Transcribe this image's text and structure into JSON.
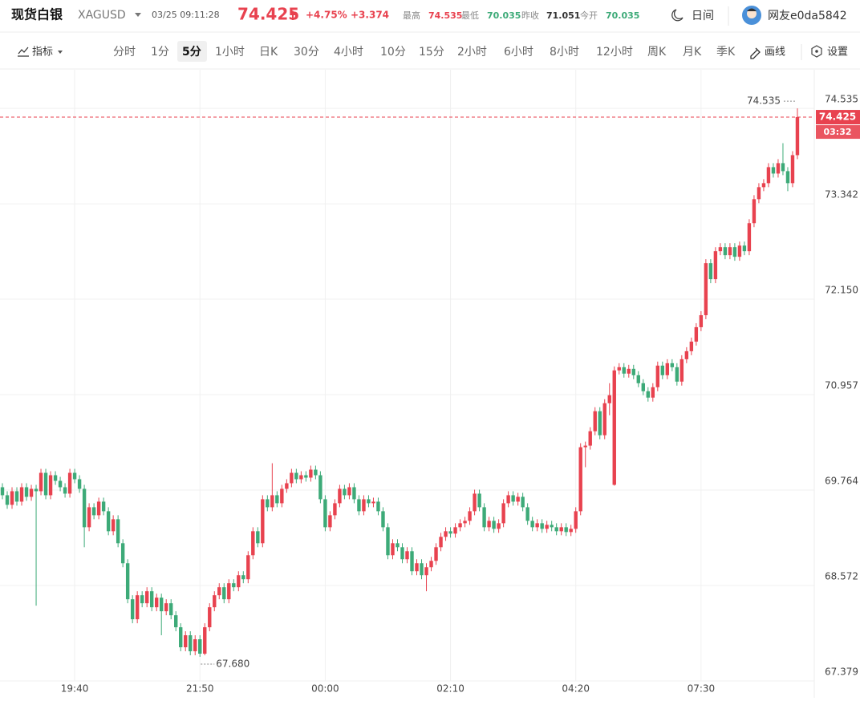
{
  "header": {
    "title": "现货白银",
    "symbol": "XAGUSD",
    "datetime": "03/25 09:11:28",
    "price": "74.425",
    "change_pct": "+4.75%",
    "change": "+3.374",
    "stats": [
      {
        "label": "最高",
        "value": "74.535"
      },
      {
        "label": "最低",
        "value": "70.035"
      },
      {
        "label": "昨收",
        "value": "71.051"
      },
      {
        "label": "今开",
        "value": "70.035"
      }
    ],
    "theme": "日间",
    "user": "网友e0da5842"
  },
  "toolbar": {
    "indicators": "指标",
    "intervals": [
      "分时",
      "1分",
      "5分",
      "1小时",
      "日K",
      "30分",
      "4小时",
      "10分",
      "15分",
      "2小时",
      "6小时",
      "8小时",
      "12小时",
      "周K",
      "月K",
      "季K"
    ],
    "active_interval": 2,
    "draw": "画线",
    "settings": "设置"
  },
  "chart_data": {
    "type": "candlestick",
    "up_color": "#e8424f",
    "down_color": "#3daa78",
    "grid": true,
    "ylim": [
      67.379,
      75.017
    ],
    "yticks": [
      74.535,
      73.342,
      {
        "value": 72.15,
        "label": "72.150"
      },
      70.957,
      69.764,
      68.572,
      67.379
    ],
    "xlim": [
      -0.5,
      168.5
    ],
    "xticks": [
      {
        "value": 15,
        "label": "19:40"
      },
      {
        "value": 41,
        "label": "21:50"
      },
      {
        "value": 67,
        "label": "00:00"
      },
      {
        "value": 93,
        "label": "02:10"
      },
      {
        "value": 119,
        "label": "04:20"
      },
      {
        "value": 145,
        "label": "07:30"
      }
    ],
    "high_label": 74.535,
    "low_label": {
      "value": 67.68,
      "label": "67.680"
    },
    "last_price": 74.425,
    "countdown": "03:32",
    "candles": [
      [
        69.8,
        69.85,
        69.65,
        69.7
      ],
      [
        69.7,
        69.75,
        69.53,
        69.58
      ],
      [
        69.58,
        69.8,
        69.53,
        69.75
      ],
      [
        69.75,
        69.8,
        69.57,
        69.62
      ],
      [
        69.62,
        69.85,
        69.57,
        69.8
      ],
      [
        69.8,
        69.85,
        69.63,
        69.68
      ],
      [
        69.68,
        69.83,
        69.63,
        69.78
      ],
      [
        69.78,
        69.83,
        68.32,
        69.75
      ],
      [
        69.75,
        70.03,
        69.7,
        69.98
      ],
      [
        69.98,
        70.03,
        69.65,
        69.7
      ],
      [
        69.7,
        70.0,
        69.65,
        69.95
      ],
      [
        69.95,
        70.0,
        69.83,
        69.88
      ],
      [
        69.88,
        69.93,
        69.75,
        69.8
      ],
      [
        69.8,
        69.85,
        69.67,
        69.72
      ],
      [
        69.72,
        70.03,
        69.67,
        69.98
      ],
      [
        69.98,
        70.03,
        69.85,
        69.9
      ],
      [
        69.9,
        69.95,
        69.73,
        69.78
      ],
      [
        69.78,
        69.83,
        69.05,
        69.3
      ],
      [
        69.3,
        69.6,
        69.25,
        69.55
      ],
      [
        69.55,
        69.6,
        69.4,
        69.45
      ],
      [
        69.45,
        69.67,
        69.4,
        69.62
      ],
      [
        69.62,
        69.67,
        69.45,
        69.5
      ],
      [
        69.5,
        69.55,
        69.2,
        69.25
      ],
      [
        69.25,
        69.45,
        69.2,
        69.4
      ],
      [
        69.4,
        69.45,
        69.05,
        69.1
      ],
      [
        69.1,
        69.15,
        68.8,
        68.85
      ],
      [
        68.85,
        68.9,
        68.35,
        68.4
      ],
      [
        68.4,
        68.45,
        68.1,
        68.15
      ],
      [
        68.15,
        68.5,
        68.1,
        68.45
      ],
      [
        68.45,
        68.5,
        68.3,
        68.35
      ],
      [
        68.35,
        68.55,
        68.3,
        68.5
      ],
      [
        68.5,
        68.55,
        68.25,
        68.3
      ],
      [
        68.3,
        68.47,
        68.25,
        68.42
      ],
      [
        68.42,
        68.47,
        67.95,
        68.25
      ],
      [
        68.25,
        68.4,
        68.2,
        68.35
      ],
      [
        68.35,
        68.4,
        68.15,
        68.2
      ],
      [
        68.2,
        68.25,
        68.0,
        68.05
      ],
      [
        68.05,
        68.1,
        67.75,
        67.8
      ],
      [
        67.8,
        68.0,
        67.75,
        67.95
      ],
      [
        67.95,
        68.0,
        67.7,
        67.75
      ],
      [
        67.75,
        67.95,
        67.7,
        67.9
      ],
      [
        67.9,
        67.95,
        67.68,
        67.72
      ],
      [
        67.72,
        68.1,
        67.7,
        68.05
      ],
      [
        68.05,
        68.35,
        68.0,
        68.3
      ],
      [
        68.3,
        68.5,
        68.25,
        68.45
      ],
      [
        68.45,
        68.6,
        68.4,
        68.55
      ],
      [
        68.55,
        68.6,
        68.35,
        68.4
      ],
      [
        68.4,
        68.65,
        68.35,
        68.6
      ],
      [
        68.6,
        68.65,
        68.5,
        68.55
      ],
      [
        68.55,
        68.75,
        68.5,
        68.7
      ],
      [
        68.7,
        68.75,
        68.6,
        68.65
      ],
      [
        68.65,
        69.0,
        68.6,
        68.95
      ],
      [
        68.95,
        69.3,
        68.9,
        69.25
      ],
      [
        69.25,
        69.3,
        69.05,
        69.1
      ],
      [
        69.1,
        69.7,
        69.05,
        69.65
      ],
      [
        69.65,
        69.7,
        69.5,
        69.55
      ],
      [
        69.55,
        70.1,
        69.5,
        69.7
      ],
      [
        69.7,
        69.75,
        69.55,
        69.6
      ],
      [
        69.6,
        69.83,
        69.55,
        69.78
      ],
      [
        69.78,
        69.9,
        69.73,
        69.85
      ],
      [
        69.85,
        70.03,
        69.8,
        69.98
      ],
      [
        69.98,
        70.03,
        69.85,
        69.9
      ],
      [
        69.9,
        70.0,
        69.85,
        69.95
      ],
      [
        69.95,
        70.0,
        69.87,
        69.92
      ],
      [
        69.92,
        70.07,
        69.87,
        70.02
      ],
      [
        70.02,
        70.07,
        69.9,
        69.95
      ],
      [
        69.95,
        70.0,
        69.6,
        69.65
      ],
      [
        69.65,
        69.7,
        69.25,
        69.3
      ],
      [
        69.3,
        69.5,
        69.25,
        69.45
      ],
      [
        69.45,
        69.65,
        69.4,
        69.6
      ],
      [
        69.6,
        69.83,
        69.55,
        69.78
      ],
      [
        69.78,
        69.83,
        69.65,
        69.7
      ],
      [
        69.7,
        69.85,
        69.65,
        69.8
      ],
      [
        69.8,
        69.85,
        69.6,
        69.65
      ],
      [
        69.65,
        69.7,
        69.45,
        69.5
      ],
      [
        69.5,
        69.7,
        69.45,
        69.65
      ],
      [
        69.65,
        69.7,
        69.55,
        69.6
      ],
      [
        69.6,
        69.67,
        69.55,
        69.62
      ],
      [
        69.62,
        69.67,
        69.45,
        69.5
      ],
      [
        69.5,
        69.55,
        69.25,
        69.3
      ],
      [
        69.3,
        69.35,
        68.9,
        68.95
      ],
      [
        68.95,
        69.15,
        68.9,
        69.1
      ],
      [
        69.1,
        69.15,
        69.0,
        69.05
      ],
      [
        69.05,
        69.1,
        68.85,
        68.9
      ],
      [
        68.9,
        69.05,
        68.85,
        69.0
      ],
      [
        69.0,
        69.05,
        68.7,
        68.75
      ],
      [
        68.75,
        68.9,
        68.7,
        68.85
      ],
      [
        68.85,
        68.9,
        68.65,
        68.7
      ],
      [
        68.7,
        68.85,
        68.5,
        68.8
      ],
      [
        68.8,
        68.93,
        68.75,
        68.88
      ],
      [
        68.88,
        69.1,
        68.83,
        69.05
      ],
      [
        69.05,
        69.23,
        69.0,
        69.18
      ],
      [
        69.18,
        69.3,
        69.13,
        69.25
      ],
      [
        69.25,
        69.3,
        69.17,
        69.22
      ],
      [
        69.22,
        69.35,
        69.17,
        69.3
      ],
      [
        69.3,
        69.4,
        69.25,
        69.35
      ],
      [
        69.35,
        69.43,
        69.3,
        69.38
      ],
      [
        69.38,
        69.55,
        69.33,
        69.5
      ],
      [
        69.5,
        69.77,
        69.45,
        69.72
      ],
      [
        69.72,
        69.77,
        69.5,
        69.55
      ],
      [
        69.55,
        69.6,
        69.25,
        69.3
      ],
      [
        69.3,
        69.43,
        69.25,
        69.38
      ],
      [
        69.38,
        69.43,
        69.23,
        69.28
      ],
      [
        69.28,
        69.4,
        69.23,
        69.35
      ],
      [
        69.35,
        69.65,
        69.3,
        69.6
      ],
      [
        69.6,
        69.75,
        69.55,
        69.7
      ],
      [
        69.7,
        69.75,
        69.57,
        69.62
      ],
      [
        69.62,
        69.73,
        69.57,
        69.68
      ],
      [
        69.68,
        69.73,
        69.5,
        69.55
      ],
      [
        69.55,
        69.6,
        69.33,
        69.38
      ],
      [
        69.38,
        69.43,
        69.25,
        69.3
      ],
      [
        69.3,
        69.4,
        69.25,
        69.35
      ],
      [
        69.35,
        69.4,
        69.23,
        69.28
      ],
      [
        69.28,
        69.38,
        69.23,
        69.33
      ],
      [
        69.33,
        69.38,
        69.25,
        69.3
      ],
      [
        69.3,
        69.35,
        69.2,
        69.25
      ],
      [
        69.25,
        69.35,
        69.2,
        69.3
      ],
      [
        69.3,
        69.35,
        69.19,
        69.24
      ],
      [
        69.24,
        69.33,
        69.19,
        69.28
      ],
      [
        69.28,
        69.55,
        69.23,
        69.5
      ],
      [
        69.5,
        70.35,
        69.45,
        70.3
      ],
      [
        70.3,
        70.37,
        70.05,
        70.32
      ],
      [
        70.32,
        70.55,
        70.27,
        70.5
      ],
      [
        70.5,
        70.8,
        70.45,
        70.75
      ],
      [
        70.75,
        70.8,
        70.4,
        70.45
      ],
      [
        70.45,
        70.9,
        70.4,
        70.85
      ],
      [
        70.85,
        71.1,
        70.7,
        70.95
      ],
      [
        69.83,
        71.31,
        69.82,
        71.26
      ],
      [
        71.26,
        71.35,
        71.21,
        71.3
      ],
      [
        71.3,
        71.35,
        71.17,
        71.22
      ],
      [
        71.22,
        71.33,
        71.17,
        71.28
      ],
      [
        71.28,
        71.33,
        71.15,
        71.2
      ],
      [
        71.2,
        71.25,
        71.05,
        71.1
      ],
      [
        71.1,
        71.15,
        70.95,
        71.0
      ],
      [
        71.0,
        71.05,
        70.87,
        70.92
      ],
      [
        70.92,
        71.1,
        70.87,
        71.05
      ],
      [
        71.05,
        71.37,
        71.0,
        71.32
      ],
      [
        71.32,
        71.37,
        71.15,
        71.2
      ],
      [
        71.2,
        71.4,
        71.15,
        71.35
      ],
      [
        71.35,
        71.4,
        71.25,
        71.3
      ],
      [
        71.3,
        71.35,
        71.07,
        71.12
      ],
      [
        71.12,
        71.45,
        71.07,
        71.4
      ],
      [
        71.4,
        71.55,
        71.35,
        71.5
      ],
      [
        71.5,
        71.67,
        71.45,
        71.62
      ],
      [
        71.62,
        71.85,
        71.57,
        71.8
      ],
      [
        71.8,
        72.0,
        71.75,
        71.95
      ],
      [
        71.95,
        72.65,
        71.9,
        72.6
      ],
      [
        72.6,
        72.65,
        72.35,
        72.4
      ],
      [
        72.4,
        72.8,
        72.35,
        72.75
      ],
      [
        72.75,
        72.85,
        72.7,
        72.8
      ],
      [
        72.8,
        72.85,
        72.65,
        72.7
      ],
      [
        72.7,
        72.85,
        72.65,
        72.8
      ],
      [
        72.8,
        72.85,
        72.63,
        72.68
      ],
      [
        72.68,
        72.87,
        72.63,
        72.82
      ],
      [
        72.82,
        72.87,
        72.7,
        72.75
      ],
      [
        72.75,
        73.15,
        72.7,
        73.1
      ],
      [
        73.1,
        73.45,
        73.05,
        73.4
      ],
      [
        73.4,
        73.6,
        73.35,
        73.55
      ],
      [
        73.55,
        73.65,
        73.5,
        73.6
      ],
      [
        73.6,
        73.85,
        73.55,
        73.8
      ],
      [
        73.8,
        73.85,
        73.67,
        73.72
      ],
      [
        73.72,
        73.9,
        73.67,
        73.85
      ],
      [
        73.85,
        74.1,
        73.7,
        73.75
      ],
      [
        73.75,
        73.8,
        73.5,
        73.6
      ],
      [
        73.6,
        74.0,
        73.55,
        73.95
      ],
      [
        73.95,
        74.535,
        73.9,
        74.425
      ]
    ]
  }
}
